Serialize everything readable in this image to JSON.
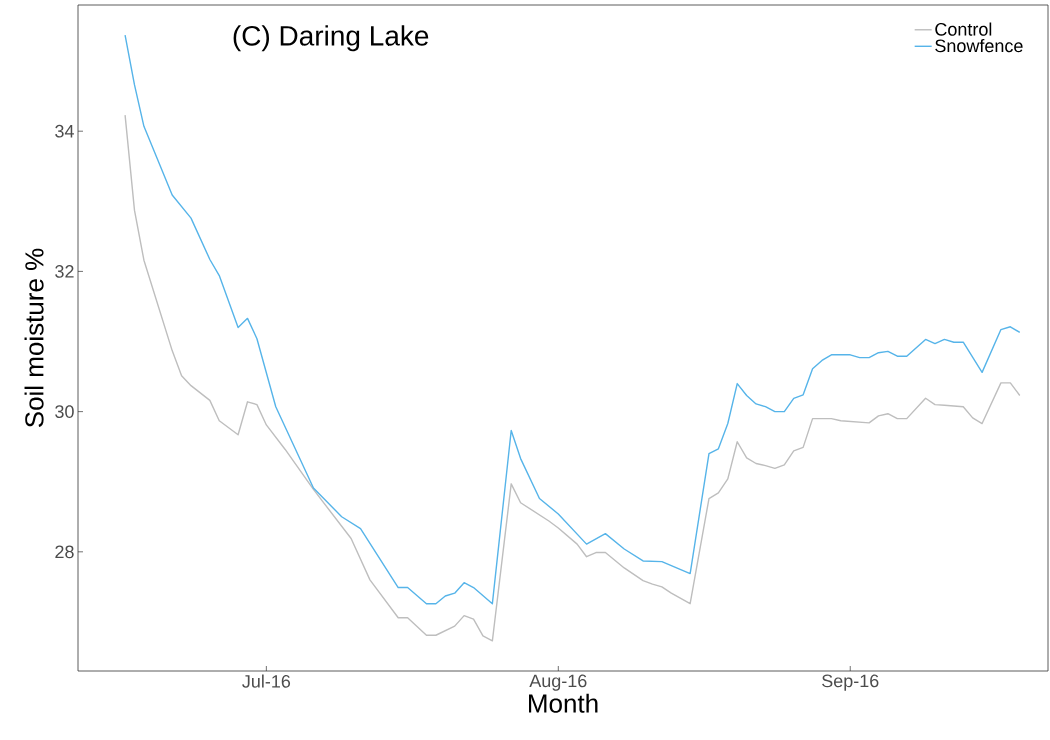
{
  "chart_data": {
    "type": "line",
    "title": "(C) Daring Lake",
    "xlabel": "Month",
    "ylabel": "Soil moisture %",
    "xlim": [
      "2016-06-11",
      "2016-09-22"
    ],
    "ylim": [
      26.3,
      35.8
    ],
    "xticks": [
      {
        "value": "2016-07-01",
        "label": "Jul-16"
      },
      {
        "value": "2016-08-01",
        "label": "Aug-16"
      },
      {
        "value": "2016-09-01",
        "label": "Sep-16"
      }
    ],
    "yticks": [
      28,
      30,
      32,
      34
    ],
    "grid": false,
    "legend": "top right",
    "marker": "none",
    "line_style": "solid",
    "series": [
      {
        "name": "Control",
        "color": "#bebebe",
        "x": [
          "2016-06-16",
          "2016-06-17",
          "2016-06-18",
          "2016-06-21",
          "2016-06-22",
          "2016-06-23",
          "2016-06-25",
          "2016-06-26",
          "2016-06-28",
          "2016-06-29",
          "2016-06-30",
          "2016-07-01",
          "2016-07-03",
          "2016-07-06",
          "2016-07-10",
          "2016-07-12",
          "2016-07-15",
          "2016-07-16",
          "2016-07-18",
          "2016-07-19",
          "2016-07-21",
          "2016-07-22",
          "2016-07-23",
          "2016-07-24",
          "2016-07-25",
          "2016-07-27",
          "2016-07-28",
          "2016-07-31",
          "2016-08-01",
          "2016-08-03",
          "2016-08-04",
          "2016-08-05",
          "2016-08-06",
          "2016-08-08",
          "2016-08-10",
          "2016-08-11",
          "2016-08-12",
          "2016-08-13",
          "2016-08-15",
          "2016-08-17",
          "2016-08-18",
          "2016-08-19",
          "2016-08-20",
          "2016-08-21",
          "2016-08-22",
          "2016-08-23",
          "2016-08-24",
          "2016-08-25",
          "2016-08-26",
          "2016-08-27",
          "2016-08-28",
          "2016-08-30",
          "2016-08-31",
          "2016-09-03",
          "2016-09-04",
          "2016-09-05",
          "2016-09-06",
          "2016-09-07",
          "2016-09-09",
          "2016-09-10",
          "2016-09-11",
          "2016-09-13",
          "2016-09-14",
          "2016-09-15",
          "2016-09-17",
          "2016-09-18",
          "2016-09-19"
        ],
        "values": [
          34.23,
          32.87,
          32.16,
          30.87,
          30.51,
          30.37,
          30.16,
          29.87,
          29.67,
          30.14,
          30.1,
          29.81,
          29.46,
          28.89,
          28.19,
          27.6,
          27.06,
          27.06,
          26.81,
          26.81,
          26.94,
          27.09,
          27.04,
          26.8,
          26.73,
          28.97,
          28.7,
          28.44,
          28.34,
          28.11,
          27.93,
          27.99,
          27.99,
          27.77,
          27.59,
          27.54,
          27.5,
          27.41,
          27.26,
          28.76,
          28.84,
          29.04,
          29.57,
          29.34,
          29.26,
          29.23,
          29.19,
          29.24,
          29.44,
          29.49,
          29.9,
          29.9,
          29.87,
          29.84,
          29.94,
          29.97,
          29.9,
          29.9,
          30.19,
          30.1,
          30.09,
          30.07,
          29.91,
          29.83,
          30.41,
          30.41,
          30.23
        ]
      },
      {
        "name": "Snowfence",
        "color": "#56b4e9",
        "x": [
          "2016-06-16",
          "2016-06-17",
          "2016-06-18",
          "2016-06-21",
          "2016-06-23",
          "2016-06-25",
          "2016-06-26",
          "2016-06-28",
          "2016-06-29",
          "2016-06-30",
          "2016-07-02",
          "2016-07-06",
          "2016-07-09",
          "2016-07-11",
          "2016-07-15",
          "2016-07-16",
          "2016-07-18",
          "2016-07-19",
          "2016-07-20",
          "2016-07-21",
          "2016-07-22",
          "2016-07-23",
          "2016-07-25",
          "2016-07-27",
          "2016-07-28",
          "2016-07-30",
          "2016-08-01",
          "2016-08-04",
          "2016-08-06",
          "2016-08-08",
          "2016-08-10",
          "2016-08-12",
          "2016-08-15",
          "2016-08-17",
          "2016-08-18",
          "2016-08-19",
          "2016-08-20",
          "2016-08-21",
          "2016-08-22",
          "2016-08-23",
          "2016-08-24",
          "2016-08-25",
          "2016-08-26",
          "2016-08-27",
          "2016-08-28",
          "2016-08-29",
          "2016-08-30",
          "2016-09-01",
          "2016-09-02",
          "2016-09-03",
          "2016-09-04",
          "2016-09-05",
          "2016-09-06",
          "2016-09-07",
          "2016-09-09",
          "2016-09-10",
          "2016-09-11",
          "2016-09-12",
          "2016-09-13",
          "2016-09-15",
          "2016-09-17",
          "2016-09-18",
          "2016-09-19"
        ],
        "values": [
          35.37,
          34.66,
          34.07,
          33.09,
          32.76,
          32.17,
          31.94,
          31.2,
          31.33,
          31.04,
          30.07,
          28.91,
          28.5,
          28.33,
          27.49,
          27.49,
          27.26,
          27.26,
          27.37,
          27.41,
          27.56,
          27.49,
          27.26,
          29.73,
          29.33,
          28.76,
          28.54,
          28.11,
          28.26,
          28.04,
          27.87,
          27.86,
          27.69,
          29.4,
          29.47,
          29.83,
          30.4,
          30.23,
          30.11,
          30.07,
          30.0,
          30.0,
          30.19,
          30.24,
          30.61,
          30.73,
          30.81,
          30.81,
          30.77,
          30.77,
          30.84,
          30.86,
          30.79,
          30.79,
          31.03,
          30.97,
          31.03,
          30.99,
          30.99,
          30.56,
          31.17,
          31.21,
          31.13
        ]
      }
    ]
  }
}
